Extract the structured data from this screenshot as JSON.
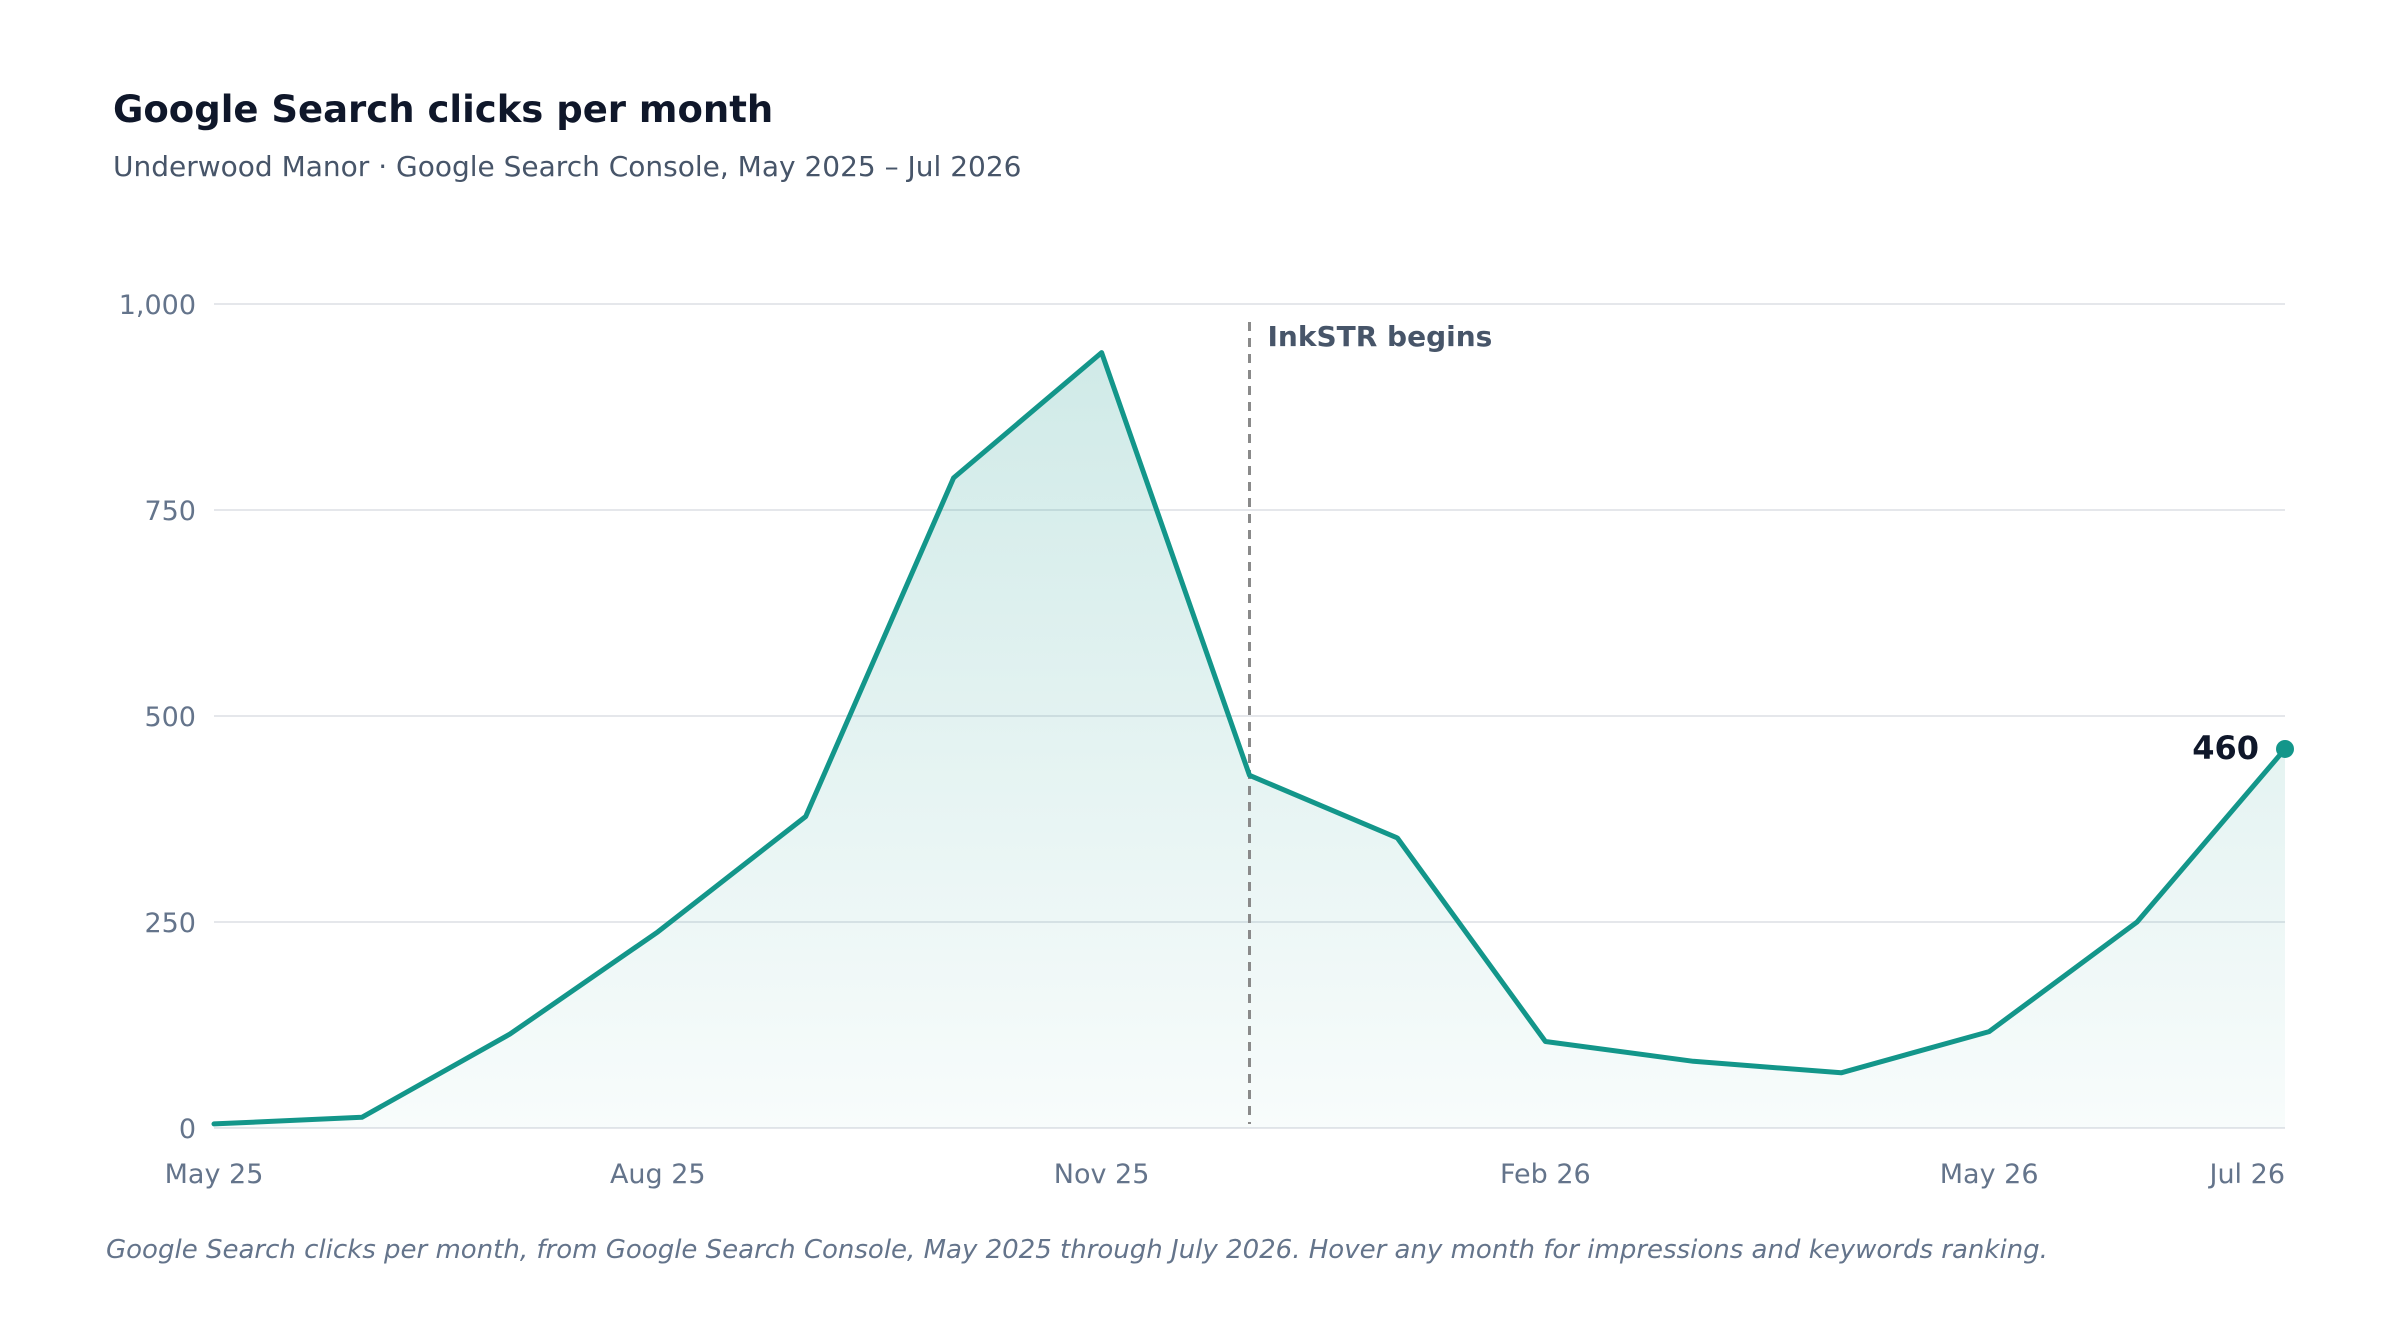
{
  "chart_data": {
    "type": "area",
    "title": "Google Search clicks per month",
    "subtitle": "Underwood Manor · Google Search Console, May 2025 – Jul 2026",
    "caption": "Google Search clicks per month, from Google Search Console, May 2025 through July 2026. Hover any month for impressions and keywords ranking.",
    "xlabel": "",
    "ylabel": "",
    "x": [
      "May 25",
      "Jun 25",
      "Jul 25",
      "Aug 25",
      "Sep 25",
      "Oct 25",
      "Nov 25",
      "Dec 25",
      "Jan 26",
      "Feb 26",
      "Mar 26",
      "Apr 26",
      "May 26",
      "Jun 26",
      "Jul 26"
    ],
    "x_tick_labels": [
      "May 25",
      "Aug 25",
      "Nov 25",
      "Feb 26",
      "May 26",
      "Jul 26"
    ],
    "values": [
      5,
      13,
      114,
      238,
      378,
      789,
      941,
      428,
      352,
      105,
      81,
      67,
      117,
      250,
      460
    ],
    "ylim": [
      0,
      1000
    ],
    "yticks": [
      0,
      250,
      500,
      750,
      1000
    ],
    "ytick_labels": [
      "0",
      "250",
      "500",
      "750",
      "1,000"
    ],
    "grid": true,
    "legend": "none",
    "annotation": {
      "x": "Dec 25",
      "label": "InkSTR begins"
    },
    "end_label": "460",
    "colors": {
      "line": "#13968a",
      "grid": "#e5e7eb",
      "annotation": "#8a8a8a"
    }
  }
}
